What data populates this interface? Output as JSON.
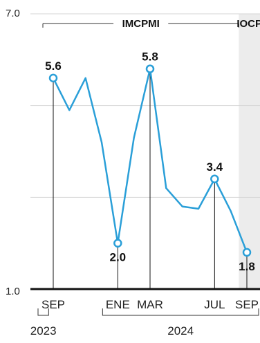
{
  "chart_data": {
    "type": "line",
    "ylim": [
      1.0,
      7.0
    ],
    "y_ticks": [
      "7.0",
      "1.0"
    ],
    "periods": [
      {
        "label": "IMCPMI",
        "from": 0,
        "to": 11
      },
      {
        "label": "IOCP",
        "from": 11,
        "to": 12
      }
    ],
    "x_tick_labels": [
      {
        "index": 0,
        "label": "SEP"
      },
      {
        "index": 4,
        "label": "ENE"
      },
      {
        "index": 6,
        "label": "MAR"
      },
      {
        "index": 10,
        "label": "JUL"
      },
      {
        "index": 12,
        "label": "SEP"
      }
    ],
    "years": [
      {
        "from": 0,
        "to": 1,
        "label": "2023"
      },
      {
        "from": 4,
        "to": 12,
        "label": "2024"
      }
    ],
    "series": [
      {
        "values": [
          5.6,
          4.9,
          5.6,
          4.2,
          2.0,
          4.3,
          5.8,
          3.2,
          2.8,
          2.75,
          3.4,
          2.7,
          1.8
        ]
      }
    ],
    "highlight_points": [
      {
        "index": 0,
        "label": "5.6"
      },
      {
        "index": 4,
        "label": "2.0"
      },
      {
        "index": 6,
        "label": "5.8"
      },
      {
        "index": 10,
        "label": "3.4"
      },
      {
        "index": 12,
        "label": "1.8"
      }
    ],
    "grid": true,
    "colors": {
      "line": "#2a9fd8",
      "shade": "#ececec",
      "grid": "#d6d6d6",
      "axis": "#111111"
    }
  }
}
